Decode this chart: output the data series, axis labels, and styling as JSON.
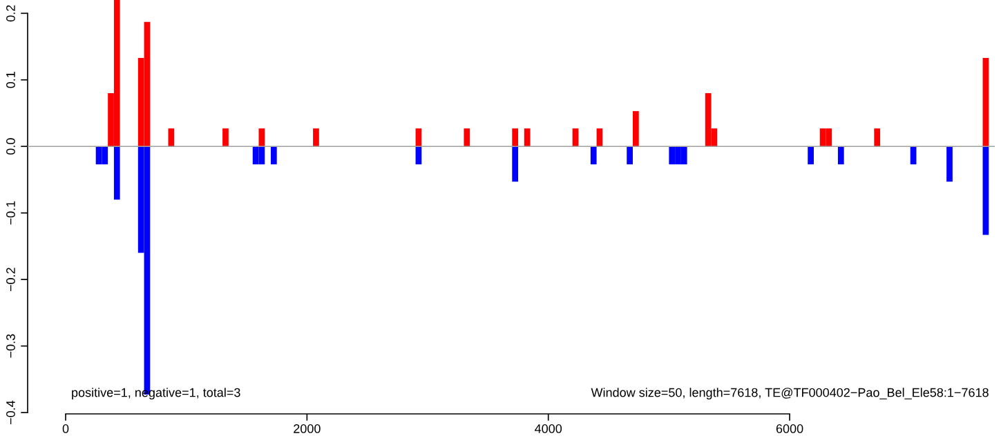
{
  "chart_data": {
    "type": "bar",
    "series": [
      {
        "color": "#ff0000",
        "x": [
          350,
          400,
          600,
          650,
          850,
          1300,
          1600,
          2050,
          2900,
          3300,
          3700,
          3800,
          4200,
          4400,
          4700,
          5300,
          5350,
          6250,
          6300,
          6700,
          7600
        ],
        "values": [
          0.08,
          0.22,
          0.133,
          0.187,
          0.027,
          0.027,
          0.027,
          0.027,
          0.027,
          0.027,
          0.027,
          0.027,
          0.027,
          0.027,
          0.053,
          0.08,
          0.027,
          0.027,
          0.027,
          0.027,
          0.133
        ]
      },
      {
        "color": "#0000ff",
        "x": [
          250,
          300,
          400,
          600,
          650,
          1550,
          1600,
          1700,
          2900,
          3700,
          4350,
          4650,
          5000,
          5050,
          5100,
          6150,
          6400,
          7000,
          7300,
          7600
        ],
        "values": [
          -0.027,
          -0.027,
          -0.08,
          -0.16,
          -0.373,
          -0.027,
          -0.027,
          -0.027,
          -0.027,
          -0.053,
          -0.027,
          -0.027,
          -0.027,
          -0.027,
          -0.027,
          -0.027,
          -0.027,
          -0.027,
          -0.053,
          -0.133
        ]
      }
    ],
    "xlim": [
      -315,
      7700
    ],
    "xticks": [
      0,
      2000,
      4000,
      6000
    ],
    "ylim": [
      -0.402,
      0.22
    ],
    "yticks": [
      {
        "value": -0.4,
        "label": "−0.4"
      },
      {
        "value": -0.3,
        "label": "−0.3"
      },
      {
        "value": -0.2,
        "label": "−0.2"
      },
      {
        "value": -0.1,
        "label": "−0.1"
      },
      {
        "value": 0.0,
        "label": "0.0"
      },
      {
        "value": 0.1,
        "label": "0.1"
      },
      {
        "value": 0.2,
        "label": "0.2"
      }
    ],
    "ref_lines": [
      {
        "axis": "y",
        "value": 0,
        "color": "#a0a0a0"
      }
    ],
    "annotations": [
      "positive=1, negative=1, total=3",
      "Window size=50, length=7618, TE@TF000402−Pao_Bel_Ele58:1−7618"
    ],
    "grid": false,
    "legend": false
  }
}
